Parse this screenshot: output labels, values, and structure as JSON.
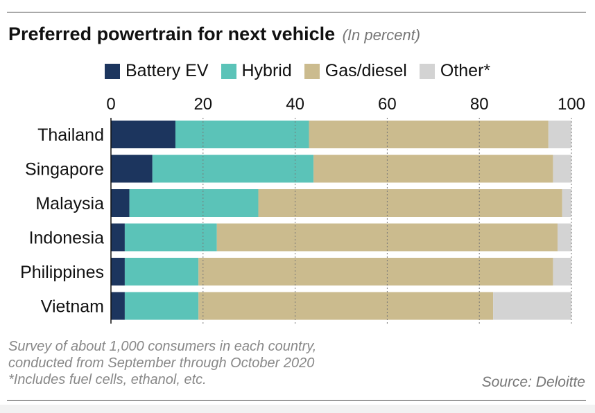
{
  "chart_data": {
    "type": "bar",
    "orientation": "horizontal",
    "stacked": true,
    "title": "Preferred powertrain for next vehicle",
    "subtitle": "(In percent)",
    "categories": [
      "Thailand",
      "Singapore",
      "Malaysia",
      "Indonesia",
      "Philippines",
      "Vietnam"
    ],
    "series": [
      {
        "name": "Battery EV",
        "color": "#1c355e",
        "values": [
          14,
          9,
          4,
          3,
          3,
          3
        ]
      },
      {
        "name": "Hybrid",
        "color": "#5bc3b8",
        "values": [
          29,
          35,
          28,
          20,
          16,
          16
        ]
      },
      {
        "name": "Gas/diesel",
        "color": "#cbbb8e",
        "values": [
          52,
          52,
          66,
          74,
          77,
          64
        ]
      },
      {
        "name": "Other*",
        "color": "#d3d3d3",
        "values": [
          5,
          4,
          2,
          3,
          4,
          17
        ]
      }
    ],
    "xlim": [
      0,
      100
    ],
    "xticks": [
      "0",
      "20",
      "40",
      "60",
      "80",
      "100"
    ],
    "grid": "vertical dotted",
    "legend_position": "top"
  },
  "notes": {
    "line1": "Survey of about 1,000 consumers in each country,",
    "line2": "conducted from September through October 2020",
    "line3": "*Includes fuel cells, ethanol, etc."
  },
  "source": "Source: Deloitte"
}
